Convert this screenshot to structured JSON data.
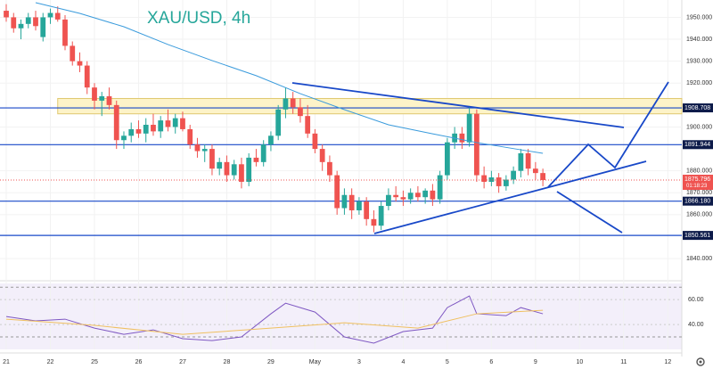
{
  "chart_data": [
    {
      "type": "candlestick",
      "title": "XAU/USD, 4h",
      "x": [
        0,
        1,
        2,
        3,
        4,
        5,
        6,
        7,
        8,
        9,
        10,
        11,
        12,
        13,
        14,
        15,
        16,
        17,
        18,
        19,
        20,
        21,
        22,
        23,
        24,
        25,
        26,
        27,
        28,
        29,
        30,
        31,
        32,
        33,
        34,
        35,
        36,
        37,
        38,
        39,
        40,
        41,
        42,
        43,
        44,
        45,
        46,
        47,
        48,
        49,
        50,
        51,
        52,
        53,
        54,
        55,
        56,
        57,
        58,
        59,
        60,
        61,
        62,
        63,
        64,
        65,
        66,
        67,
        68,
        69,
        70,
        71,
        72,
        73
      ],
      "open": [
        1953,
        1950,
        1945,
        1947,
        1950,
        1941,
        1950,
        1952,
        1949,
        1937,
        1930,
        1928,
        1918,
        1912,
        1914,
        1910,
        1894,
        1896,
        1899,
        1897,
        1901,
        1898,
        1903,
        1900,
        1904,
        1899,
        1892,
        1889,
        1890,
        1881,
        1884,
        1878,
        1883,
        1875,
        1886,
        1884,
        1892,
        1896,
        1908,
        1913,
        1909,
        1905,
        1897,
        1890,
        1884,
        1878,
        1863,
        1869,
        1862,
        1866,
        1858,
        1855,
        1864,
        1869,
        1868,
        1867,
        1870,
        1868,
        1871,
        1867,
        1878,
        1893,
        1897,
        1893,
        1906,
        1878,
        1875,
        1877,
        1873,
        1876,
        1880,
        1888,
        1881,
        1879
      ],
      "high": [
        1956,
        1952,
        1949,
        1952,
        1953,
        1952,
        1954,
        1955,
        1951,
        1939,
        1934,
        1930,
        1920,
        1916,
        1918,
        1912,
        1898,
        1902,
        1903,
        1904,
        1906,
        1905,
        1908,
        1906,
        1907,
        1901,
        1895,
        1892,
        1892,
        1886,
        1887,
        1885,
        1886,
        1888,
        1890,
        1894,
        1898,
        1910,
        1918,
        1916,
        1913,
        1910,
        1899,
        1892,
        1887,
        1880,
        1872,
        1872,
        1868,
        1868,
        1862,
        1866,
        1872,
        1873,
        1871,
        1872,
        1873,
        1872,
        1874,
        1880,
        1895,
        1900,
        1900,
        1909,
        1908,
        1882,
        1880,
        1879,
        1878,
        1882,
        1890,
        1890,
        1884,
        1881
      ],
      "low": [
        1948,
        1943,
        1940,
        1945,
        1944,
        1939,
        1947,
        1948,
        1935,
        1928,
        1925,
        1915,
        1908,
        1905,
        1908,
        1890,
        1890,
        1893,
        1895,
        1893,
        1896,
        1895,
        1898,
        1897,
        1898,
        1890,
        1886,
        1884,
        1878,
        1878,
        1875,
        1876,
        1872,
        1873,
        1882,
        1882,
        1889,
        1894,
        1904,
        1906,
        1902,
        1895,
        1888,
        1880,
        1875,
        1860,
        1860,
        1858,
        1860,
        1855,
        1852,
        1853,
        1862,
        1866,
        1864,
        1865,
        1866,
        1865,
        1864,
        1865,
        1876,
        1890,
        1890,
        1891,
        1875,
        1872,
        1873,
        1870,
        1871,
        1874,
        1877,
        1878,
        1876,
        1873
      ],
      "close": [
        1950,
        1945,
        1947,
        1950,
        1946,
        1950,
        1952,
        1949,
        1937,
        1930,
        1928,
        1918,
        1912,
        1914,
        1910,
        1894,
        1896,
        1899,
        1897,
        1901,
        1898,
        1903,
        1900,
        1904,
        1899,
        1892,
        1889,
        1890,
        1881,
        1884,
        1878,
        1883,
        1875,
        1886,
        1884,
        1892,
        1896,
        1908,
        1913,
        1909,
        1905,
        1897,
        1890,
        1884,
        1878,
        1863,
        1869,
        1862,
        1866,
        1858,
        1855,
        1864,
        1869,
        1868,
        1867,
        1870,
        1868,
        1871,
        1867,
        1878,
        1893,
        1897,
        1893,
        1906,
        1878,
        1875,
        1877,
        1873,
        1876,
        1880,
        1888,
        1881,
        1879,
        1875.796
      ],
      "up_color": "#26a69a",
      "down_color": "#ef5350",
      "ma": {
        "color": "#3a9bdc",
        "x": [
          4,
          10,
          16,
          22,
          28,
          34,
          40,
          46,
          52,
          58,
          64,
          70,
          73
        ],
        "values": [
          1956.7,
          1951.8,
          1945.7,
          1937.6,
          1930.3,
          1923.4,
          1915.2,
          1907.9,
          1901,
          1896.9,
          1892.9,
          1889.6,
          1888
        ]
      },
      "levels": [
        1908.708,
        1891.944,
        1866.18,
        1850.561
      ],
      "level_labels": [
        "1908.708",
        "1891.944",
        "1866.180",
        "1850.561"
      ],
      "level_color": "#1848c8",
      "zone": [
        1906,
        1913
      ],
      "current_price": 1875.796,
      "current_label": "1875.796",
      "countdown": "01:18:23",
      "xlim": [
        -0.85,
        91.9
      ],
      "xticks": [
        {
          "value": 0,
          "label": "21"
        },
        {
          "value": 6,
          "label": "22"
        },
        {
          "value": 12,
          "label": "25"
        },
        {
          "value": 18,
          "label": "26"
        },
        {
          "value": 24,
          "label": "27"
        },
        {
          "value": 30,
          "label": "28"
        },
        {
          "value": 36,
          "label": "29"
        },
        {
          "value": 42,
          "label": "May"
        },
        {
          "value": 48,
          "label": "3"
        },
        {
          "value": 54,
          "label": "4"
        },
        {
          "value": 60,
          "label": "5"
        },
        {
          "value": 66,
          "label": "6"
        },
        {
          "value": 72,
          "label": "9"
        },
        {
          "value": 78,
          "label": "10"
        },
        {
          "value": 84,
          "label": "11"
        },
        {
          "value": 90,
          "label": "12"
        }
      ],
      "ylim": [
        1831.1,
        1957.9
      ],
      "yticks": [
        {
          "value": 1950,
          "label": "1950.000"
        },
        {
          "value": 1940,
          "label": "1940.000"
        },
        {
          "value": 1930,
          "label": "1930.000"
        },
        {
          "value": 1920,
          "label": "1920.000"
        },
        {
          "value": 1900,
          "label": "1900.000"
        },
        {
          "value": 1880,
          "label": "1880.000"
        },
        {
          "value": 1870,
          "label": "1870.000"
        },
        {
          "value": 1860,
          "label": "1860.000"
        },
        {
          "value": 1840,
          "label": "1840.000"
        }
      ]
    },
    {
      "type": "line",
      "series": [
        {
          "color": "#7e57c2",
          "x": [
            0,
            4,
            8,
            12,
            16,
            20,
            24,
            28,
            32,
            36,
            38,
            42,
            46,
            50,
            54,
            58,
            60,
            63,
            64,
            68,
            70,
            73
          ],
          "values": [
            46.4,
            42.9,
            44.3,
            37.1,
            32.1,
            35.7,
            28.6,
            27.1,
            30,
            48.6,
            57.1,
            50,
            30,
            25,
            34.3,
            37.1,
            53.6,
            62.9,
            48.6,
            47.1,
            53.6,
            48.6
          ]
        },
        {
          "color": "#f0c060",
          "x": [
            0,
            12,
            24,
            36,
            46,
            56,
            64,
            73
          ],
          "values": [
            44.3,
            39.3,
            32.1,
            37.1,
            41.4,
            37.1,
            48.6,
            51.4
          ]
        }
      ],
      "bands": [
        30,
        70
      ],
      "ylim": [
        20,
        73
      ],
      "yticks": [
        {
          "value": 60,
          "label": "60.00"
        },
        {
          "value": 40,
          "label": "40.00"
        }
      ]
    }
  ]
}
